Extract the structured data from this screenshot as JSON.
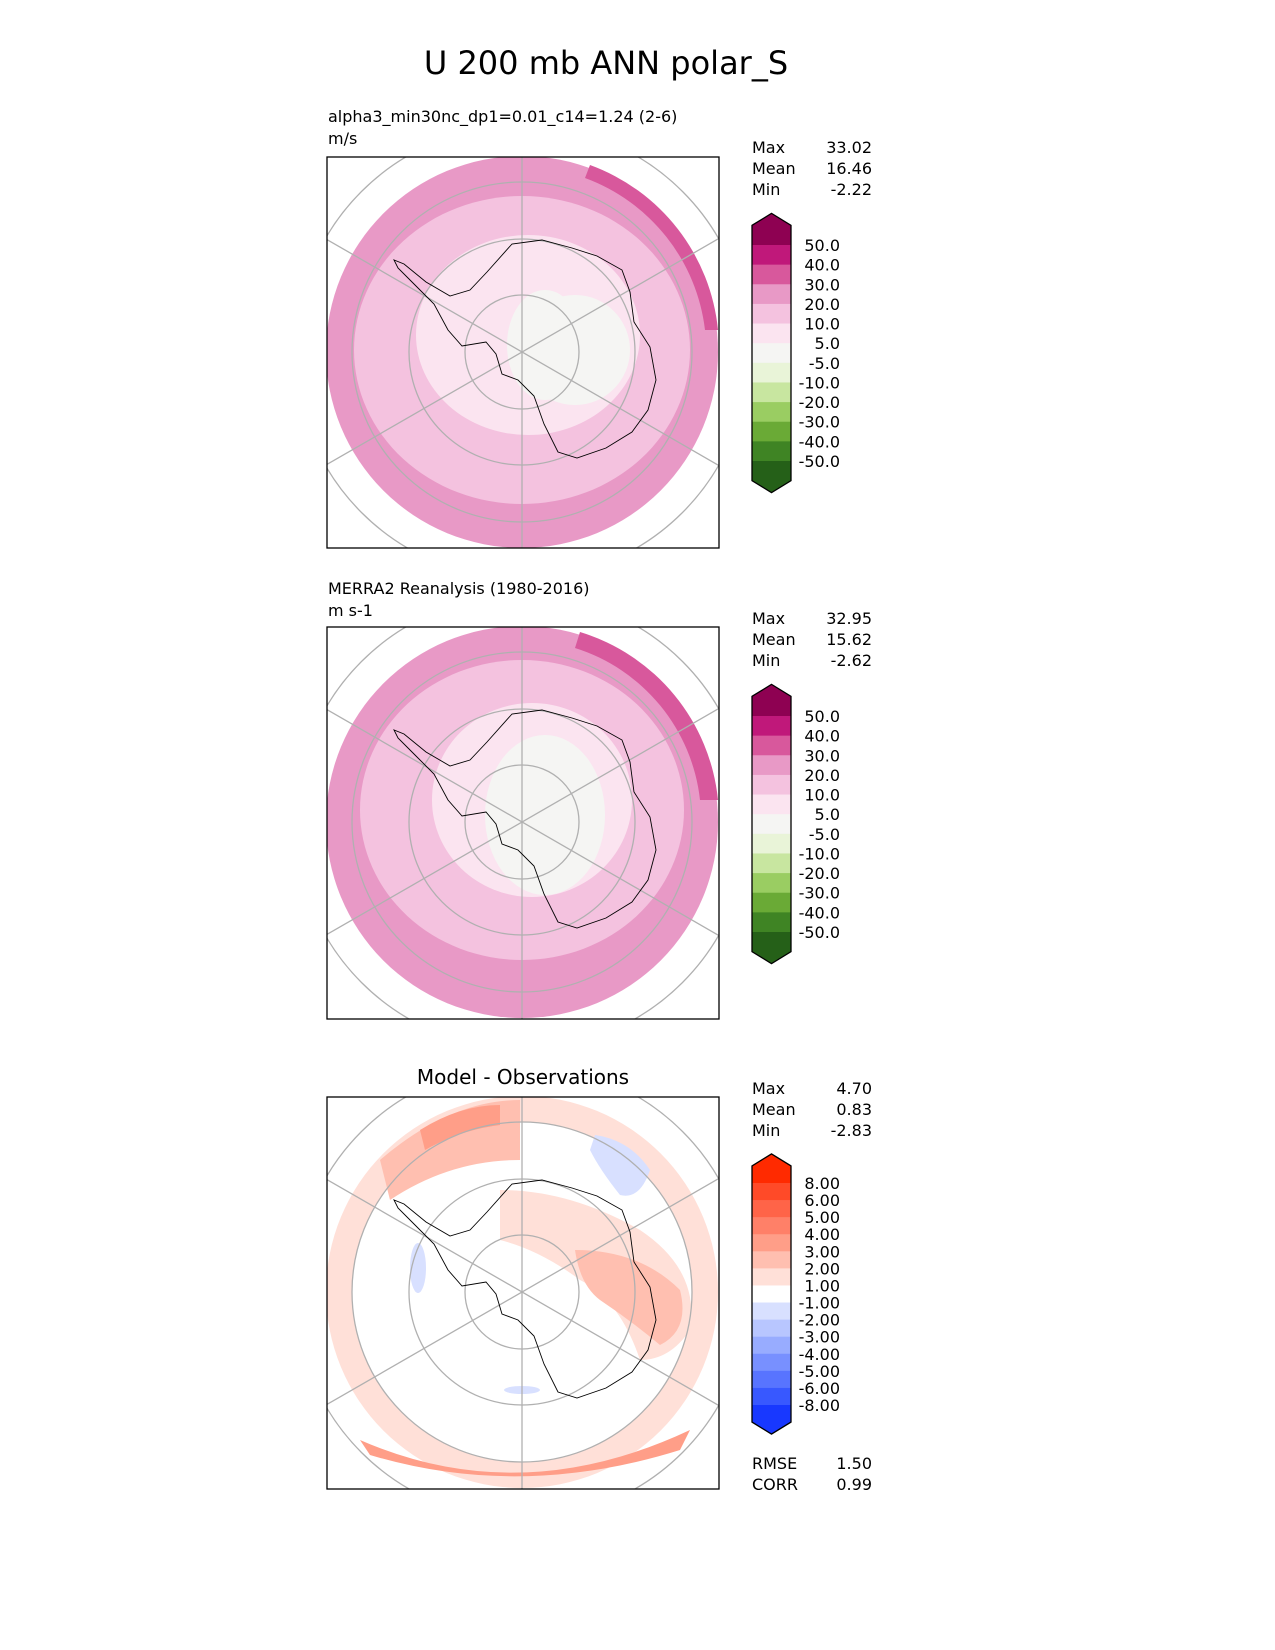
{
  "title": "U 200 mb ANN polar_S",
  "chart_data": [
    {
      "type": "heatmap",
      "projection": "south polar stereographic",
      "title_line1": "alpha3_min30nc_dp1=0.01_c14=1.24 (2-6)",
      "title_line2": "m/s",
      "stats": [
        {
          "label": "Max",
          "value": "33.02"
        },
        {
          "label": "Mean",
          "value": "16.46"
        },
        {
          "label": "Min",
          "value": "-2.22"
        }
      ],
      "colorbar": {
        "levels": [
          "50.0",
          "40.0",
          "30.0",
          "20.0",
          "10.0",
          "5.0",
          "-5.0",
          "-10.0",
          "-20.0",
          "-30.0",
          "-40.0",
          "-50.0"
        ],
        "colors": [
          "#8e0152",
          "#c0187a",
          "#d8589c",
          "#e899c6",
          "#f4c2df",
          "#fbe4f0",
          "#f5f5f3",
          "#e9f4d8",
          "#c8e6a0",
          "#9acd62",
          "#6aaa36",
          "#3f8424",
          "#256018"
        ]
      }
    },
    {
      "type": "heatmap",
      "projection": "south polar stereographic",
      "title_line1": "MERRA2 Reanalysis (1980-2016)",
      "title_line2": "m s-1",
      "stats": [
        {
          "label": "Max",
          "value": "32.95"
        },
        {
          "label": "Mean",
          "value": "15.62"
        },
        {
          "label": "Min",
          "value": "-2.62"
        }
      ],
      "colorbar": {
        "levels": [
          "50.0",
          "40.0",
          "30.0",
          "20.0",
          "10.0",
          "5.0",
          "-5.0",
          "-10.0",
          "-20.0",
          "-30.0",
          "-40.0",
          "-50.0"
        ],
        "colors": [
          "#8e0152",
          "#c0187a",
          "#d8589c",
          "#e899c6",
          "#f4c2df",
          "#fbe4f0",
          "#f5f5f3",
          "#e9f4d8",
          "#c8e6a0",
          "#9acd62",
          "#6aaa36",
          "#3f8424",
          "#256018"
        ]
      }
    },
    {
      "type": "heatmap",
      "projection": "south polar stereographic",
      "title_line1": "Model - Observations",
      "stats": [
        {
          "label": "Max",
          "value": "4.70"
        },
        {
          "label": "Mean",
          "value": "0.83"
        },
        {
          "label": "Min",
          "value": "-2.83"
        }
      ],
      "colorbar": {
        "levels": [
          "8.00",
          "6.00",
          "5.00",
          "4.00",
          "3.00",
          "2.00",
          "1.00",
          "-1.00",
          "-2.00",
          "-3.00",
          "-4.00",
          "-5.00",
          "-6.00",
          "-8.00"
        ],
        "colors": [
          "#ff2a00",
          "#ff4a28",
          "#ff6448",
          "#ff8068",
          "#ff9e88",
          "#ffbfb0",
          "#ffe0d8",
          "#ffffff",
          "#d8e0ff",
          "#b8c6ff",
          "#98acff",
          "#7890ff",
          "#5874ff",
          "#3858ff",
          "#1838ff"
        ]
      },
      "footer_stats": [
        {
          "label": "RMSE",
          "value": "1.50"
        },
        {
          "label": "CORR",
          "value": "0.99"
        }
      ]
    }
  ]
}
